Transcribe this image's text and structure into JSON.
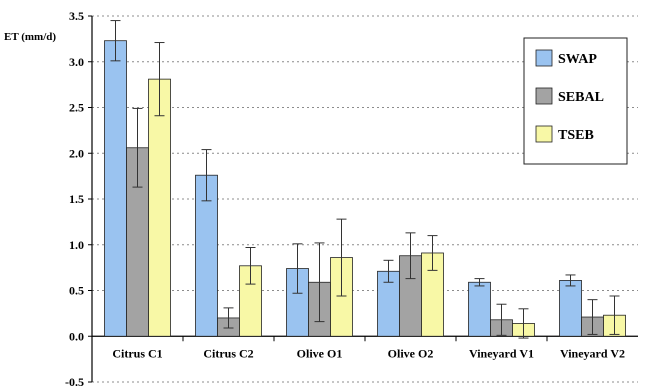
{
  "chart_data": {
    "type": "bar",
    "ylabel": "ET (mm/d)",
    "ylim": [
      -0.5,
      3.5
    ],
    "yticks": [
      "3.5",
      "3.0",
      "2.5",
      "2.0",
      "1.5",
      "1.0",
      "0.5",
      "0.0",
      "-0.5"
    ],
    "ytick_values": [
      3.5,
      3.0,
      2.5,
      2.0,
      1.5,
      1.0,
      0.5,
      0.0,
      -0.5
    ],
    "grid": true,
    "legend_position": "top-right",
    "categories": [
      "Citrus C1",
      "Citrus C2",
      "Olive O1",
      "Olive O2",
      "Vineyard V1",
      "Vineyard V2"
    ],
    "series": [
      {
        "name": "SWAP",
        "color": "#9ac3f0",
        "values": [
          3.23,
          1.76,
          0.74,
          0.71,
          0.59,
          0.61
        ],
        "errors": [
          0.22,
          0.28,
          0.27,
          0.12,
          0.04,
          0.06
        ]
      },
      {
        "name": "SEBAL",
        "color": "#a3a3a3",
        "values": [
          2.06,
          0.2,
          0.59,
          0.88,
          0.18,
          0.21
        ],
        "errors": [
          0.43,
          0.11,
          0.43,
          0.25,
          0.17,
          0.19
        ]
      },
      {
        "name": "TSEB",
        "color": "#f8f8a6",
        "values": [
          2.81,
          0.77,
          0.86,
          0.91,
          0.14,
          0.23
        ],
        "errors": [
          0.4,
          0.2,
          0.42,
          0.19,
          0.16,
          0.21
        ]
      }
    ]
  }
}
